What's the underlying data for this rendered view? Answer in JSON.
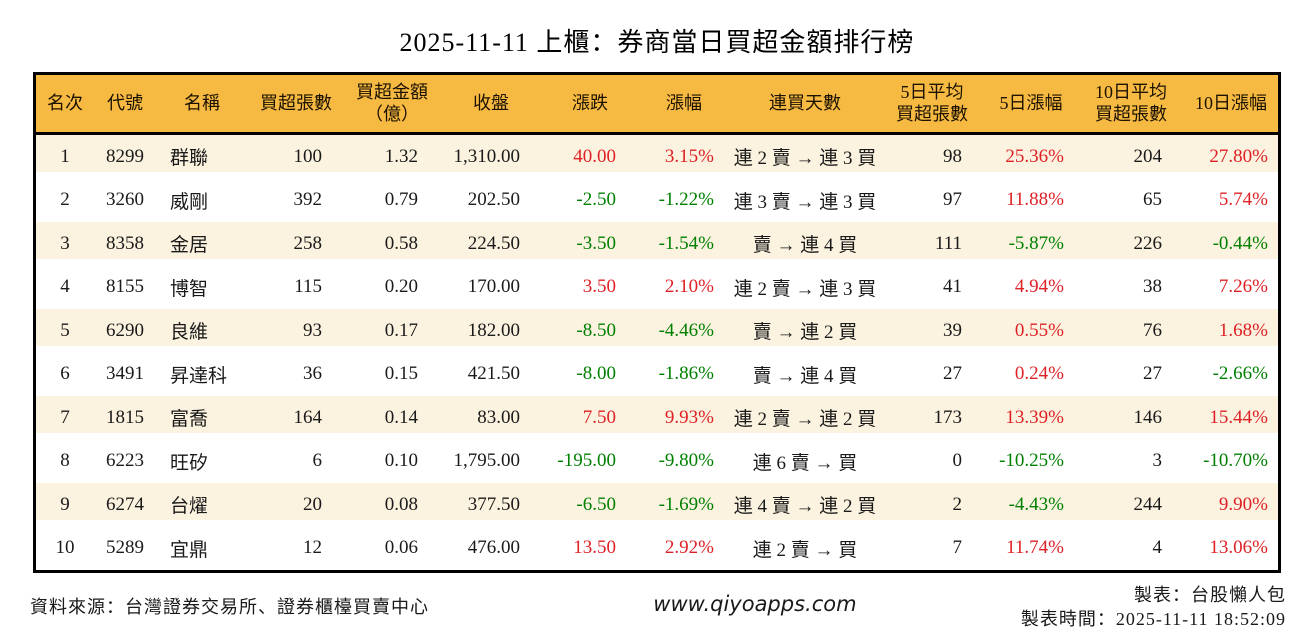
{
  "page_title": "2025-11-11 上櫃：券商當日買超金額排行榜",
  "colors": {
    "header_bg": "#F6B942",
    "row_alt_bg": "#FBF2DF",
    "up": "#DE2126",
    "down": "#008000",
    "border": "#000000",
    "text": "#1A1A1A"
  },
  "chart_data": {
    "type": "table",
    "title": "2025-11-11 上櫃：券商當日買超金額排行榜",
    "columns": [
      {
        "key": "rank",
        "label": "名次",
        "label_lines": [
          "名次"
        ],
        "signed": false
      },
      {
        "key": "code",
        "label": "代號",
        "label_lines": [
          "代號"
        ],
        "signed": false
      },
      {
        "key": "name",
        "label": "名稱",
        "label_lines": [
          "名稱"
        ],
        "signed": false
      },
      {
        "key": "net_buy_vol",
        "label": "買超張數",
        "label_lines": [
          "買超張數"
        ],
        "signed": false
      },
      {
        "key": "net_buy_amt",
        "label": "買超金額（億）",
        "label_lines": [
          "買超金額",
          "（億）"
        ],
        "signed": false
      },
      {
        "key": "close",
        "label": "收盤",
        "label_lines": [
          "收盤"
        ],
        "signed": false
      },
      {
        "key": "change",
        "label": "漲跌",
        "label_lines": [
          "漲跌"
        ],
        "signed": true
      },
      {
        "key": "change_pct",
        "label": "漲幅",
        "label_lines": [
          "漲幅"
        ],
        "signed": true
      },
      {
        "key": "streak",
        "label": "連買天數",
        "label_lines": [
          "連買天數"
        ],
        "signed": false
      },
      {
        "key": "avg5_vol",
        "label": "5日平均買超張數",
        "label_lines": [
          "5日平均",
          "買超張數"
        ],
        "signed": false
      },
      {
        "key": "pct5",
        "label": "5日漲幅",
        "label_lines": [
          "5日漲幅"
        ],
        "signed": true
      },
      {
        "key": "avg10_vol",
        "label": "10日平均買超張數",
        "label_lines": [
          "10日平均",
          "買超張數"
        ],
        "signed": false
      },
      {
        "key": "pct10",
        "label": "10日漲幅",
        "label_lines": [
          "10日漲幅"
        ],
        "signed": true
      }
    ],
    "rows": [
      [
        "1",
        "8299",
        "群聯",
        "100",
        "1.32",
        "1,310.00",
        "40.00",
        "3.15%",
        "連 2 賣 → 連 3 買",
        "98",
        "25.36%",
        "204",
        "27.80%"
      ],
      [
        "2",
        "3260",
        "威剛",
        "392",
        "0.79",
        "202.50",
        "-2.50",
        "-1.22%",
        "連 3 賣 → 連 3 買",
        "97",
        "11.88%",
        "65",
        "5.74%"
      ],
      [
        "3",
        "8358",
        "金居",
        "258",
        "0.58",
        "224.50",
        "-3.50",
        "-1.54%",
        "賣 → 連 4 買",
        "111",
        "-5.87%",
        "226",
        "-0.44%"
      ],
      [
        "4",
        "8155",
        "博智",
        "115",
        "0.20",
        "170.00",
        "3.50",
        "2.10%",
        "連 2 賣 → 連 3 買",
        "41",
        "4.94%",
        "38",
        "7.26%"
      ],
      [
        "5",
        "6290",
        "良維",
        "93",
        "0.17",
        "182.00",
        "-8.50",
        "-4.46%",
        "賣 → 連 2 買",
        "39",
        "0.55%",
        "76",
        "1.68%"
      ],
      [
        "6",
        "3491",
        "昇達科",
        "36",
        "0.15",
        "421.50",
        "-8.00",
        "-1.86%",
        "賣 → 連 4 買",
        "27",
        "0.24%",
        "27",
        "-2.66%"
      ],
      [
        "7",
        "1815",
        "富喬",
        "164",
        "0.14",
        "83.00",
        "7.50",
        "9.93%",
        "連 2 賣 → 連 2 買",
        "173",
        "13.39%",
        "146",
        "15.44%"
      ],
      [
        "8",
        "6223",
        "旺矽",
        "6",
        "0.10",
        "1,795.00",
        "-195.00",
        "-9.80%",
        "連 6 賣 → 買",
        "0",
        "-10.25%",
        "3",
        "-10.70%"
      ],
      [
        "9",
        "6274",
        "台燿",
        "20",
        "0.08",
        "377.50",
        "-6.50",
        "-1.69%",
        "連 4 賣 → 連 2 買",
        "2",
        "-4.43%",
        "244",
        "9.90%"
      ],
      [
        "10",
        "5289",
        "宜鼎",
        "12",
        "0.06",
        "476.00",
        "13.50",
        "2.92%",
        "連 2 賣 → 買",
        "7",
        "11.74%",
        "4",
        "13.06%"
      ]
    ]
  },
  "footer": {
    "source": "資料來源：台灣證券交易所、證券櫃檯買賣中心",
    "website": "www.qiyoapps.com",
    "credit": "製表：台股懶人包",
    "generated_at": "製表時間：2025-11-11 18:52:09"
  }
}
